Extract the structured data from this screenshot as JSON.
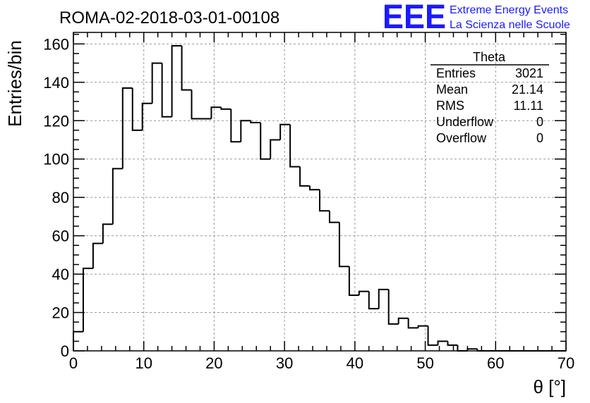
{
  "header": {
    "run_title": "ROMA-02-2018-03-01-00108",
    "logo": "EEE",
    "org_line1": "Extreme Energy Events",
    "org_line2": "La Scienza nelle Scuole"
  },
  "stats_box": {
    "title": "Theta",
    "rows": [
      {
        "label": "Entries",
        "value": "3021"
      },
      {
        "label": "Mean",
        "value": "21.14"
      },
      {
        "label": "RMS",
        "value": "11.11"
      },
      {
        "label": "Underflow",
        "value": "0"
      },
      {
        "label": "Overflow",
        "value": "0"
      }
    ]
  },
  "chart_data": {
    "type": "bar",
    "style": "step-histogram",
    "xlabel": "θ [°]",
    "ylabel": "Entries/bin",
    "xlim": [
      0,
      70
    ],
    "ylim": [
      0,
      166
    ],
    "grid": true,
    "bin_width": 1.4,
    "x_ticks": [
      0,
      10,
      20,
      30,
      40,
      50,
      60,
      70
    ],
    "y_ticks": [
      0,
      20,
      40,
      60,
      80,
      100,
      120,
      140,
      160
    ],
    "values": [
      10,
      43,
      56,
      66,
      95,
      137,
      115,
      129,
      150,
      122,
      159,
      136,
      121,
      121,
      127,
      126,
      109,
      120,
      119,
      100,
      110,
      118,
      96,
      86,
      84,
      73,
      67,
      44,
      29,
      31,
      22,
      32,
      14,
      17,
      12,
      13,
      3,
      5,
      3,
      0,
      1,
      0,
      0,
      0,
      0,
      0,
      0,
      0,
      0,
      0
    ]
  }
}
